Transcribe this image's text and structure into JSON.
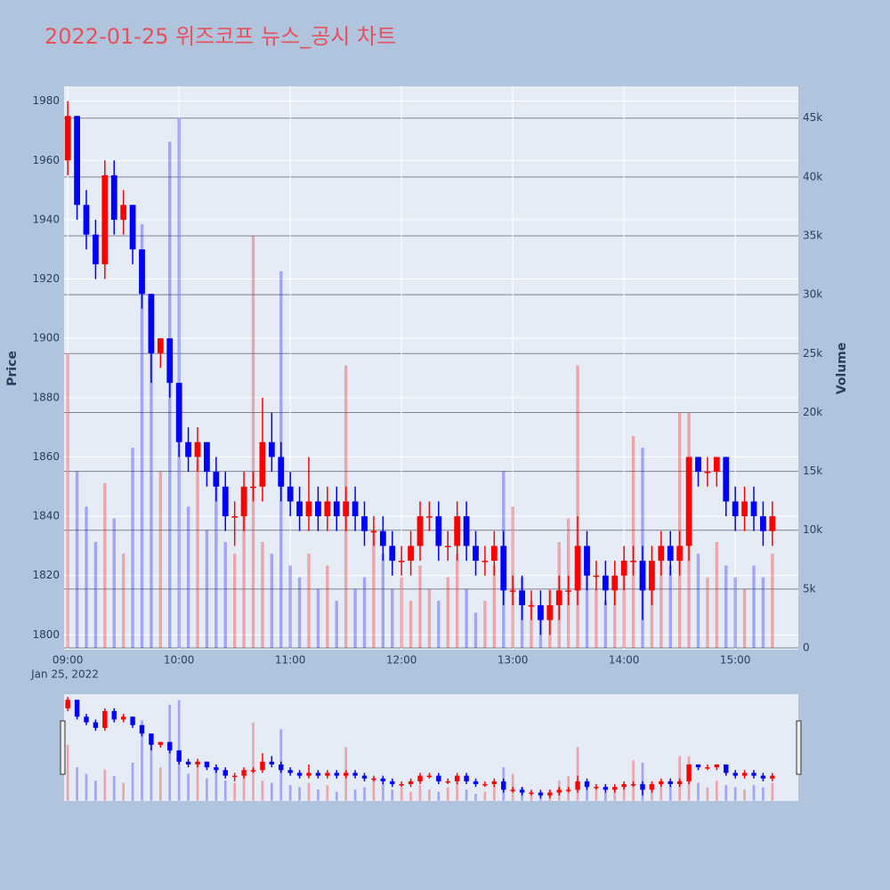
{
  "chart_data": {
    "type": "candlestick",
    "title": "2022-01-25 위즈코프 뉴스_공시 차트",
    "y_title": "Price",
    "y2_title": "Volume",
    "x": [
      "09:00",
      "09:05",
      "09:10",
      "09:15",
      "09:20",
      "09:25",
      "09:30",
      "09:35",
      "09:40",
      "09:45",
      "09:50",
      "09:55",
      "10:00",
      "10:05",
      "10:10",
      "10:15",
      "10:20",
      "10:25",
      "10:30",
      "10:35",
      "10:40",
      "10:45",
      "10:50",
      "10:55",
      "11:00",
      "11:05",
      "11:10",
      "11:15",
      "11:20",
      "11:25",
      "11:30",
      "11:35",
      "11:40",
      "11:45",
      "11:50",
      "11:55",
      "12:00",
      "12:05",
      "12:10",
      "12:15",
      "12:20",
      "12:25",
      "12:30",
      "12:35",
      "12:40",
      "12:45",
      "12:50",
      "12:55",
      "13:00",
      "13:05",
      "13:10",
      "13:15",
      "13:20",
      "13:25",
      "13:30",
      "13:35",
      "13:40",
      "13:45",
      "13:50",
      "13:55",
      "14:00",
      "14:05",
      "14:10",
      "14:15",
      "14:20",
      "14:25",
      "14:30",
      "14:35",
      "14:40",
      "14:45",
      "14:50",
      "14:55",
      "15:00",
      "15:05",
      "15:10",
      "15:15",
      "15:20"
    ],
    "open": [
      1960,
      1975,
      1945,
      1935,
      1925,
      1955,
      1940,
      1945,
      1930,
      1915,
      1895,
      1900,
      1885,
      1865,
      1860,
      1865,
      1855,
      1850,
      1840,
      1840,
      1850,
      1850,
      1865,
      1860,
      1850,
      1845,
      1840,
      1845,
      1840,
      1845,
      1840,
      1845,
      1840,
      1835,
      1835,
      1830,
      1825,
      1825,
      1830,
      1840,
      1840,
      1830,
      1830,
      1840,
      1830,
      1825,
      1825,
      1830,
      1815,
      1815,
      1810,
      1810,
      1805,
      1810,
      1815,
      1815,
      1830,
      1820,
      1820,
      1815,
      1820,
      1825,
      1825,
      1815,
      1825,
      1830,
      1825,
      1830,
      1860,
      1855,
      1855,
      1860,
      1845,
      1840,
      1845,
      1840,
      1835
    ],
    "high": [
      1980,
      1975,
      1950,
      1940,
      1960,
      1960,
      1950,
      1945,
      1930,
      1915,
      1900,
      1900,
      1885,
      1870,
      1870,
      1865,
      1860,
      1855,
      1845,
      1855,
      1855,
      1880,
      1875,
      1865,
      1855,
      1850,
      1860,
      1850,
      1850,
      1850,
      1850,
      1850,
      1845,
      1840,
      1840,
      1835,
      1830,
      1835,
      1845,
      1845,
      1845,
      1835,
      1845,
      1845,
      1835,
      1830,
      1835,
      1835,
      1820,
      1820,
      1815,
      1815,
      1815,
      1820,
      1820,
      1840,
      1835,
      1825,
      1825,
      1825,
      1830,
      1830,
      1830,
      1830,
      1835,
      1835,
      1835,
      1860,
      1860,
      1860,
      1860,
      1860,
      1850,
      1850,
      1850,
      1845,
      1845
    ],
    "low": [
      1955,
      1940,
      1930,
      1920,
      1920,
      1935,
      1935,
      1925,
      1910,
      1885,
      1890,
      1880,
      1860,
      1855,
      1855,
      1850,
      1845,
      1835,
      1830,
      1835,
      1845,
      1845,
      1855,
      1845,
      1840,
      1835,
      1835,
      1835,
      1835,
      1835,
      1835,
      1835,
      1830,
      1830,
      1825,
      1820,
      1820,
      1820,
      1825,
      1835,
      1825,
      1825,
      1825,
      1825,
      1820,
      1820,
      1820,
      1810,
      1810,
      1805,
      1805,
      1800,
      1800,
      1805,
      1810,
      1810,
      1815,
      1815,
      1810,
      1810,
      1815,
      1820,
      1805,
      1810,
      1820,
      1820,
      1820,
      1825,
      1850,
      1850,
      1850,
      1840,
      1835,
      1835,
      1835,
      1830,
      1830
    ],
    "close": [
      1975,
      1945,
      1935,
      1925,
      1955,
      1940,
      1945,
      1930,
      1915,
      1895,
      1900,
      1885,
      1865,
      1860,
      1865,
      1855,
      1850,
      1840,
      1840,
      1850,
      1850,
      1865,
      1860,
      1850,
      1845,
      1840,
      1845,
      1840,
      1845,
      1840,
      1845,
      1840,
      1835,
      1835,
      1830,
      1825,
      1825,
      1830,
      1840,
      1840,
      1830,
      1830,
      1840,
      1830,
      1825,
      1825,
      1830,
      1815,
      1815,
      1810,
      1810,
      1805,
      1810,
      1815,
      1815,
      1830,
      1820,
      1820,
      1815,
      1820,
      1825,
      1825,
      1815,
      1825,
      1830,
      1825,
      1830,
      1860,
      1855,
      1855,
      1860,
      1845,
      1840,
      1845,
      1840,
      1835,
      1840
    ],
    "volume": [
      25000,
      15000,
      12000,
      9000,
      14000,
      11000,
      8000,
      17000,
      36000,
      28000,
      15000,
      43000,
      45000,
      12000,
      16000,
      10000,
      14000,
      9000,
      8000,
      12000,
      35000,
      9000,
      8000,
      32000,
      7000,
      6000,
      8000,
      5000,
      7000,
      4000,
      24000,
      5000,
      6000,
      10000,
      8000,
      5000,
      6000,
      4000,
      7000,
      5000,
      4000,
      6000,
      8000,
      5000,
      3000,
      4000,
      7000,
      15000,
      12000,
      6000,
      4000,
      3000,
      5000,
      9000,
      11000,
      24000,
      7000,
      5000,
      4000,
      6000,
      7000,
      18000,
      17000,
      6000,
      8000,
      7000,
      20000,
      20000,
      8000,
      6000,
      9000,
      7000,
      6000,
      5000,
      7000,
      6000,
      8000
    ],
    "up_color": "#ff0000",
    "down_color": "#0000ff",
    "xlim": [
      "08:58",
      "15:34"
    ],
    "xticks": [
      "09:00",
      "10:00",
      "11:00",
      "12:00",
      "13:00",
      "14:00",
      "15:00"
    ],
    "xtick_sublabel": "Jan 25, 2022",
    "ylim": [
      1795,
      1985
    ],
    "yticks": [
      1800,
      1820,
      1840,
      1860,
      1880,
      1900,
      1920,
      1940,
      1960,
      1980
    ],
    "y2lim": [
      -150,
      47700
    ],
    "y2ticks": [
      0,
      {
        "value": 5000,
        "label": "5k"
      },
      {
        "value": 10000,
        "label": "10k"
      },
      {
        "value": 15000,
        "label": "15k"
      },
      {
        "value": 20000,
        "label": "20k"
      },
      {
        "value": 25000,
        "label": "25k"
      },
      {
        "value": 30000,
        "label": "30k"
      },
      {
        "value": 35000,
        "label": "35k"
      },
      {
        "value": 40000,
        "label": "40k"
      },
      {
        "value": 45000,
        "label": "45k"
      }
    ],
    "grid": true,
    "rangeslider": true
  }
}
